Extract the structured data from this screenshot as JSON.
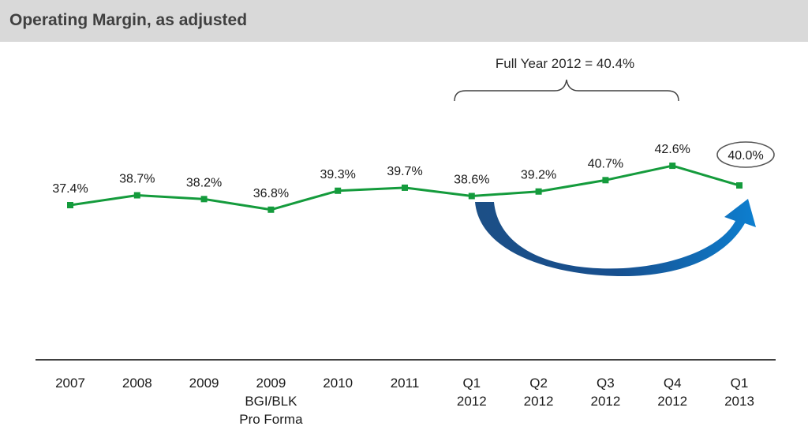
{
  "header": {
    "title": "Operating Margin, as adjusted"
  },
  "annotation": {
    "full_year_label": "Full Year 2012 = 40.4%"
  },
  "colors": {
    "line": "#149b3c",
    "header_bg": "#d9d9d9",
    "arrow_dark": "#1c4f86",
    "arrow_light": "#0d7fd0",
    "axis": "#404040"
  },
  "chart_data": {
    "type": "line",
    "title": "Operating Margin, as adjusted",
    "xlabel": "",
    "ylabel": "",
    "categories": [
      [
        "2007"
      ],
      [
        "2008"
      ],
      [
        "2009"
      ],
      [
        "2009",
        "BGI/BLK",
        "Pro Forma"
      ],
      [
        "2010"
      ],
      [
        "2011"
      ],
      [
        "Q1",
        "2012"
      ],
      [
        "Q2",
        "2012"
      ],
      [
        "Q3",
        "2012"
      ],
      [
        "Q4",
        "2012"
      ],
      [
        "Q1",
        "2013"
      ]
    ],
    "values": [
      37.4,
      38.7,
      38.2,
      36.8,
      39.3,
      39.7,
      38.6,
      39.2,
      40.7,
      42.6,
      40.0
    ],
    "data_labels": [
      "37.4%",
      "38.7%",
      "38.2%",
      "36.8%",
      "39.3%",
      "39.7%",
      "38.6%",
      "39.2%",
      "40.7%",
      "42.6%",
      "40.0%"
    ],
    "highlighted_label_index": 10,
    "bracket_span": [
      6,
      9
    ],
    "grid": false,
    "legend": "none"
  }
}
